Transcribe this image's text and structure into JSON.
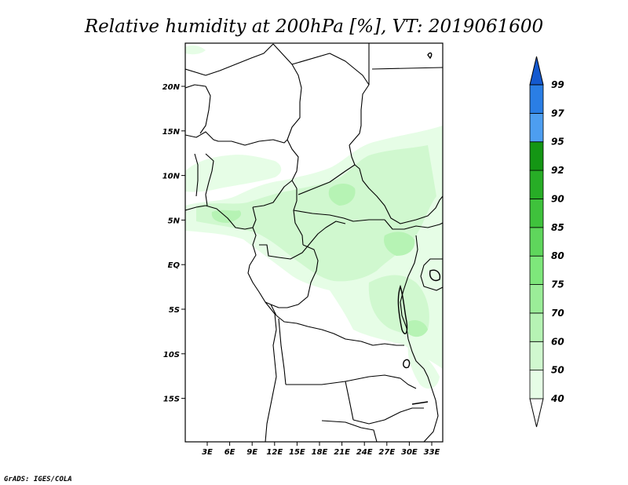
{
  "title": "Relative humidity at 200hPa [%], VT: 2019061600",
  "credit": "GrADS: IGES/COLA",
  "axes": {
    "lat_ticks": [
      "20N",
      "15N",
      "10N",
      "5N",
      "EQ",
      "5S",
      "10S",
      "15S"
    ],
    "lon_ticks": [
      "3E",
      "6E",
      "9E",
      "12E",
      "15E",
      "18E",
      "21E",
      "24E",
      "27E",
      "30E",
      "33E"
    ]
  },
  "colorbar": {
    "levels": [
      "40",
      "50",
      "60",
      "70",
      "75",
      "80",
      "85",
      "90",
      "92",
      "95",
      "97",
      "99"
    ],
    "colors": [
      "#ffffff",
      "#e6fde6",
      "#d0f8cf",
      "#b6f3b4",
      "#9bed98",
      "#7ee77b",
      "#5fd65c",
      "#3fc23c",
      "#27ad26",
      "#149614",
      "#4d9ef0",
      "#2a7ee5",
      "#1459cf"
    ]
  },
  "map_features": [
    "green-humidity-shading",
    "country-borders",
    "coastlines",
    "lakes"
  ]
}
